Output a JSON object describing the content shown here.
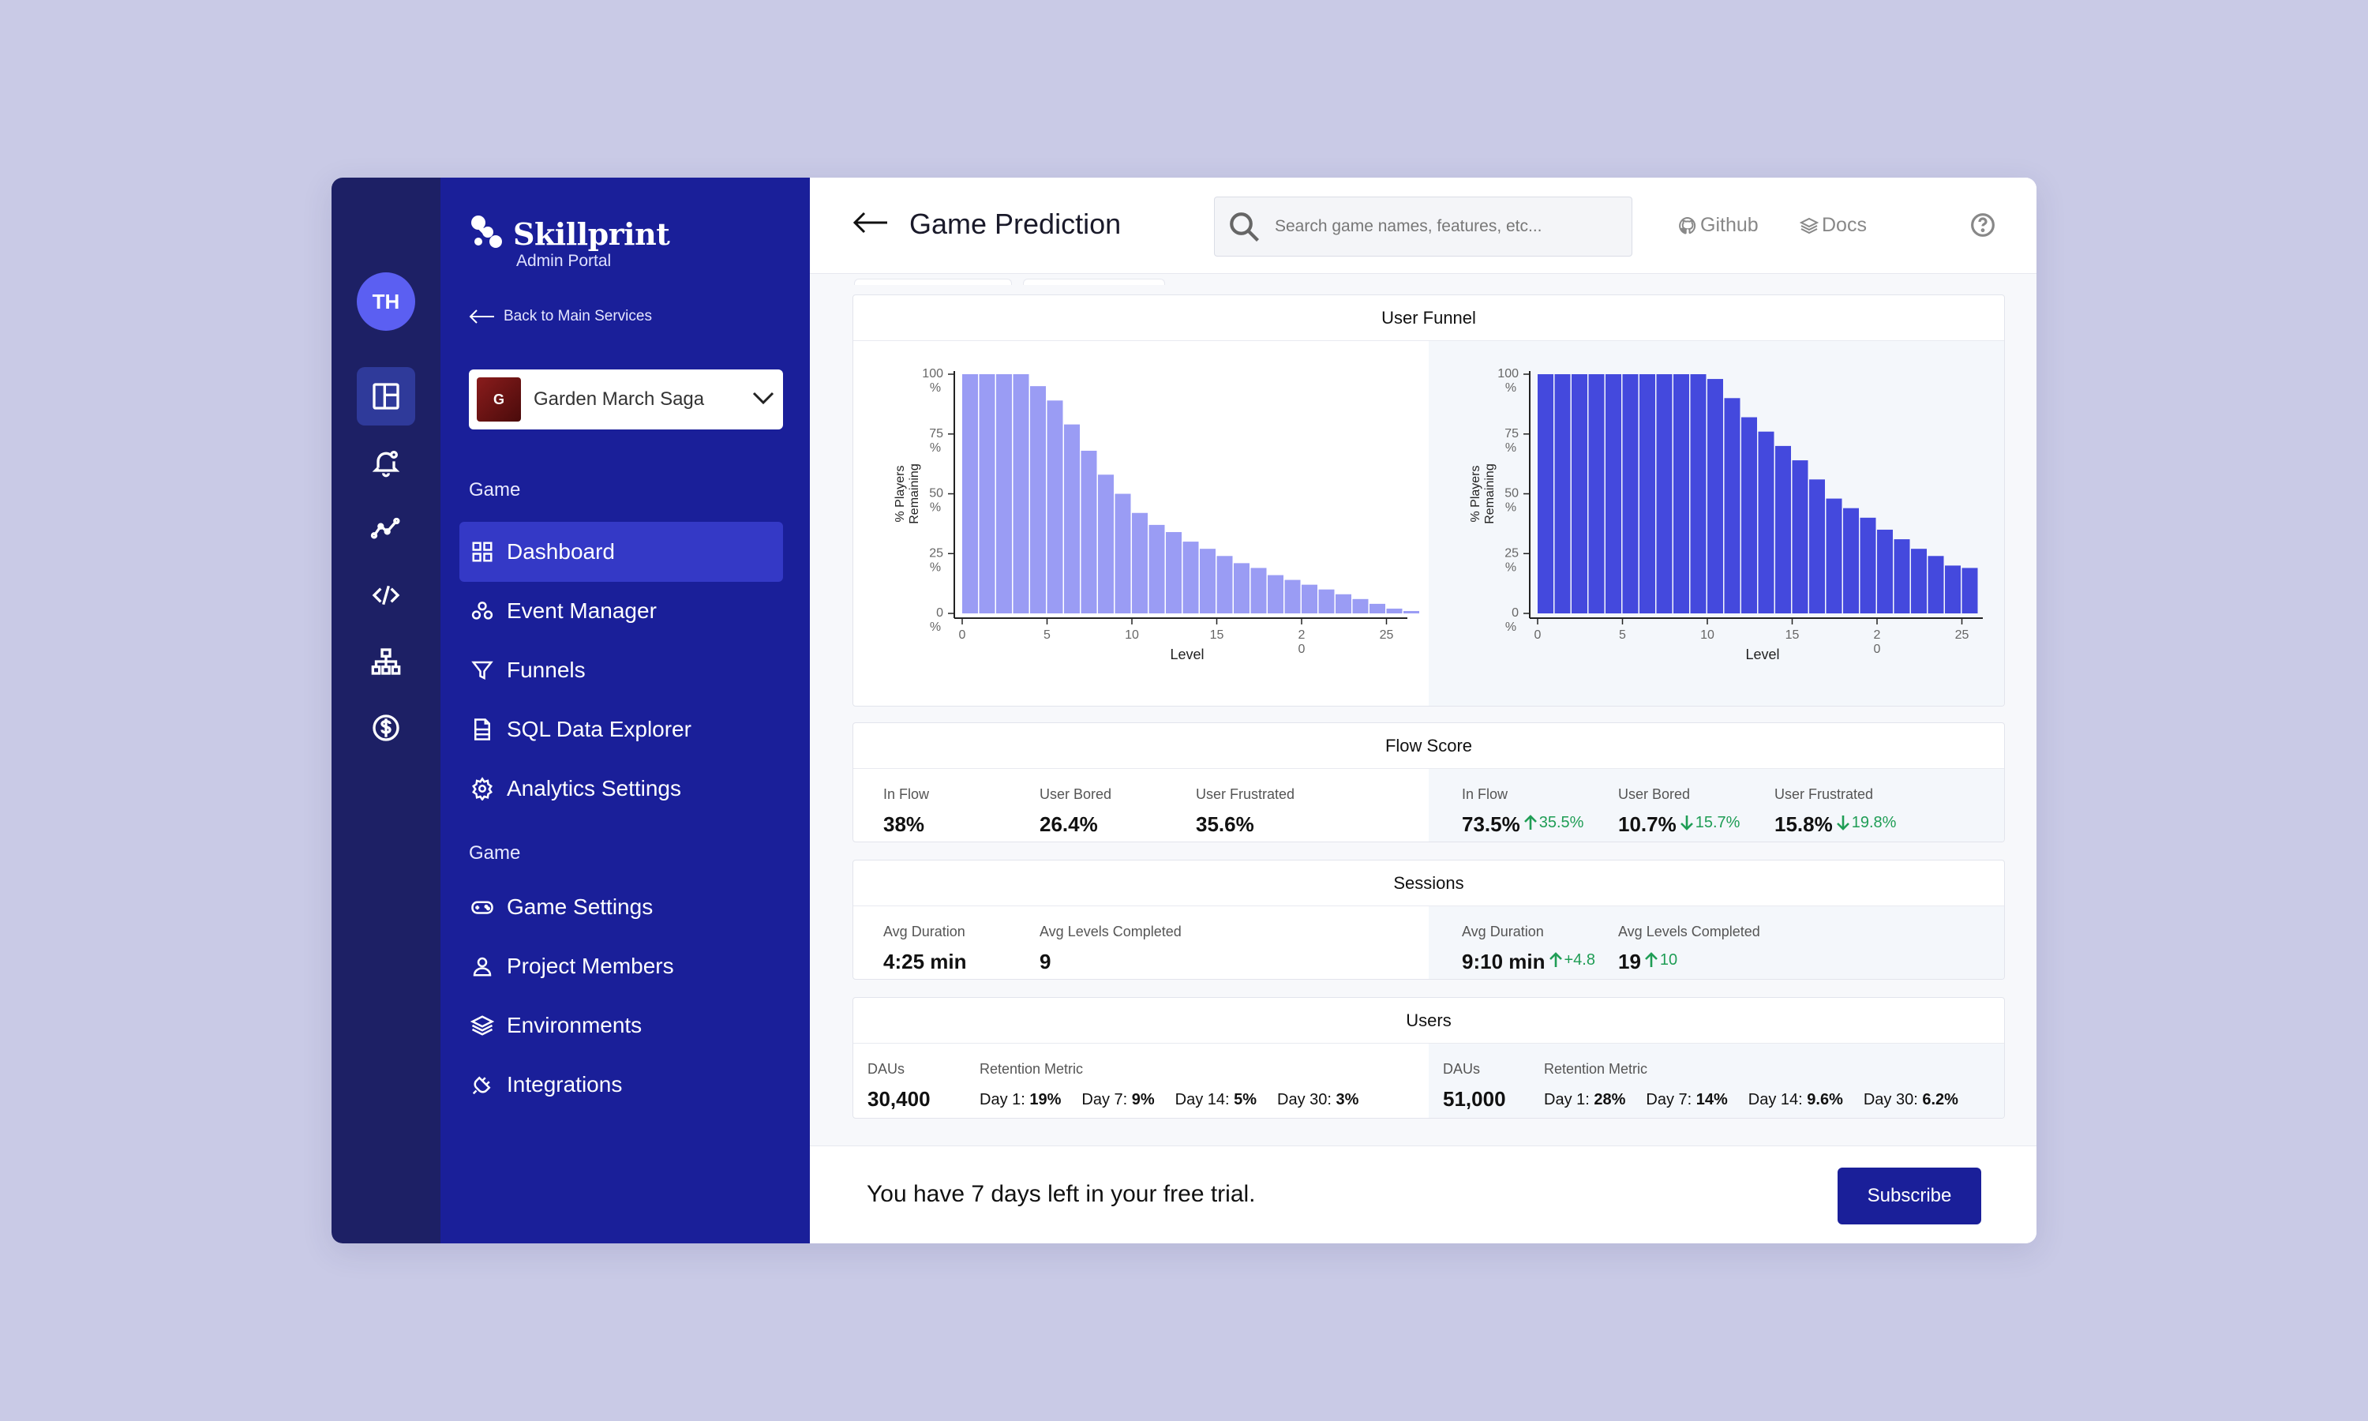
{
  "rail": {
    "avatar": "TH"
  },
  "sidebar": {
    "brand": "Skillprint",
    "subtitle": "Admin Portal",
    "back_label": "Back to Main Services",
    "game": {
      "badge": "G",
      "name": "Garden March Saga"
    },
    "section1": "Game",
    "items1": [
      {
        "label": "Dashboard",
        "icon": "dashboard-icon",
        "active": true
      },
      {
        "label": "Event Manager",
        "icon": "event-manager-icon"
      },
      {
        "label": "Funnels",
        "icon": "funnel-icon"
      },
      {
        "label": "SQL Data Explorer",
        "icon": "sql-file-icon"
      },
      {
        "label": "Analytics Settings",
        "icon": "gear-icon"
      }
    ],
    "section2": "Game",
    "items2": [
      {
        "label": "Game Settings",
        "icon": "gamepad-icon"
      },
      {
        "label": "Project Members",
        "icon": "user-icon"
      },
      {
        "label": "Environments",
        "icon": "layers-icon"
      },
      {
        "label": "Integrations",
        "icon": "plug-icon"
      }
    ]
  },
  "header": {
    "title": "Game Prediction",
    "search_placeholder": "Search game names, features, etc...",
    "github": "Github",
    "docs": "Docs"
  },
  "funnel": {
    "title": "User Funnel"
  },
  "chart_data": [
    {
      "type": "bar",
      "xlabel": "Level",
      "ylabel": "% Players Remaining",
      "ylim": [
        0,
        100
      ],
      "yticks": [
        "0\n%",
        "25\n%",
        "50\n%",
        "75\n%",
        "100\n%"
      ],
      "xticks": [
        "0",
        "5",
        "10",
        "15",
        "2\n0",
        "25"
      ],
      "color": "#9a9cf4",
      "values": [
        100,
        100,
        100,
        100,
        95,
        89,
        79,
        68,
        58,
        50,
        42,
        37,
        34,
        30,
        27,
        24,
        21,
        19,
        16,
        14,
        12,
        10,
        8,
        6,
        4,
        2,
        1
      ]
    },
    {
      "type": "bar",
      "xlabel": "Level",
      "ylabel": "% Players Remaining",
      "ylim": [
        0,
        100
      ],
      "yticks": [
        "0\n%",
        "25\n%",
        "50\n%",
        "75\n%",
        "100\n%"
      ],
      "xticks": [
        "0",
        "5",
        "10",
        "15",
        "2\n0",
        "25"
      ],
      "color": "#4449dd",
      "values": [
        100,
        100,
        100,
        100,
        100,
        100,
        100,
        100,
        100,
        100,
        98,
        90,
        82,
        76,
        70,
        64,
        56,
        48,
        44,
        40,
        35,
        31,
        27,
        24,
        20,
        19
      ]
    }
  ],
  "flow": {
    "title": "Flow Score",
    "left": [
      {
        "label": "In Flow",
        "value": "38%"
      },
      {
        "label": "User Bored",
        "value": "26.4%"
      },
      {
        "label": "User Frustrated",
        "value": "35.6%"
      }
    ],
    "right": [
      {
        "label": "In Flow",
        "value": "73.5%",
        "delta": "35.5%",
        "dir": "up"
      },
      {
        "label": "User Bored",
        "value": "10.7%",
        "delta": "15.7%",
        "dir": "down"
      },
      {
        "label": "User Frustrated",
        "value": "15.8%",
        "delta": "19.8%",
        "dir": "down"
      }
    ]
  },
  "sessions": {
    "title": "Sessions",
    "left": [
      {
        "label": "Avg Duration",
        "value": "4:25 min"
      },
      {
        "label": "Avg Levels Completed",
        "value": "9"
      }
    ],
    "right": [
      {
        "label": "Avg Duration",
        "value": "9:10 min",
        "delta": "+4.8",
        "dir": "up"
      },
      {
        "label": "Avg Levels Completed",
        "value": "19",
        "delta": "10",
        "dir": "up"
      }
    ]
  },
  "users": {
    "title": "Users",
    "dau_label": "DAUs",
    "retention_label": "Retention Metric",
    "left": {
      "dau": "30,400",
      "retention": [
        [
          "Day 1: ",
          "19%"
        ],
        [
          "Day 7: ",
          "9%"
        ],
        [
          "Day 14: ",
          "5%"
        ],
        [
          "Day 30: ",
          "3%"
        ]
      ]
    },
    "right": {
      "dau": "51,000",
      "retention": [
        [
          "Day 1: ",
          "28%"
        ],
        [
          "Day 7: ",
          "14%"
        ],
        [
          "Day 14: ",
          "9.6%"
        ],
        [
          "Day 30: ",
          "6.2%"
        ]
      ]
    }
  },
  "footer": {
    "trial_text": "You have 7 days left in your free trial.",
    "subscribe": "Subscribe"
  }
}
